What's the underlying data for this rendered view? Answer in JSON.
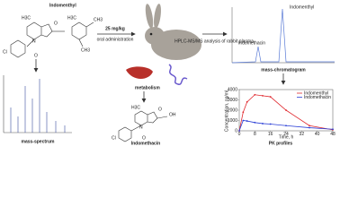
{
  "top_molecule": {
    "name": "Indomenthyl",
    "labels": [
      "H3C",
      "O",
      "N",
      "Cl",
      "O",
      "H3C",
      "CH3",
      "CH3"
    ]
  },
  "dose": "25 mg/kg",
  "route": "oral administration",
  "analysis": "HPLC-MS/MS analysis of rabbit plasma",
  "chromatogram": {
    "caption": "mass-chromatogram",
    "peaks": [
      "Indomethacin",
      "Indomenthyl"
    ]
  },
  "spectrum": {
    "caption": "mass-spectrum"
  },
  "metabolism": "metabolism",
  "bottom_molecule": {
    "name": "Indomethacin",
    "labels": [
      "H3C",
      "O",
      "N",
      "Cl",
      "O",
      "OH"
    ]
  },
  "pk_chart": {
    "type": "line",
    "caption": "PK profiles",
    "x_label": "Time, h",
    "y_label": "Concentration, ng/ml",
    "x": [
      0,
      2,
      4,
      8,
      12,
      16,
      24,
      36,
      48
    ],
    "series": [
      {
        "name": "Indomenthyl",
        "color": "#e0282e",
        "values": [
          0,
          1800,
          2800,
          3500,
          3400,
          3300,
          2000,
          500,
          100
        ]
      },
      {
        "name": "Indomethacin",
        "color": "#2b3fd6",
        "values": [
          0,
          1000,
          950,
          800,
          700,
          650,
          500,
          300,
          150
        ]
      }
    ],
    "xlim": [
      0,
      48
    ],
    "xticks": [
      0,
      8,
      16,
      24,
      32,
      40,
      48
    ],
    "ylim": [
      0,
      4000
    ],
    "yticks": [
      0,
      1000,
      2000,
      3000,
      4000
    ]
  }
}
